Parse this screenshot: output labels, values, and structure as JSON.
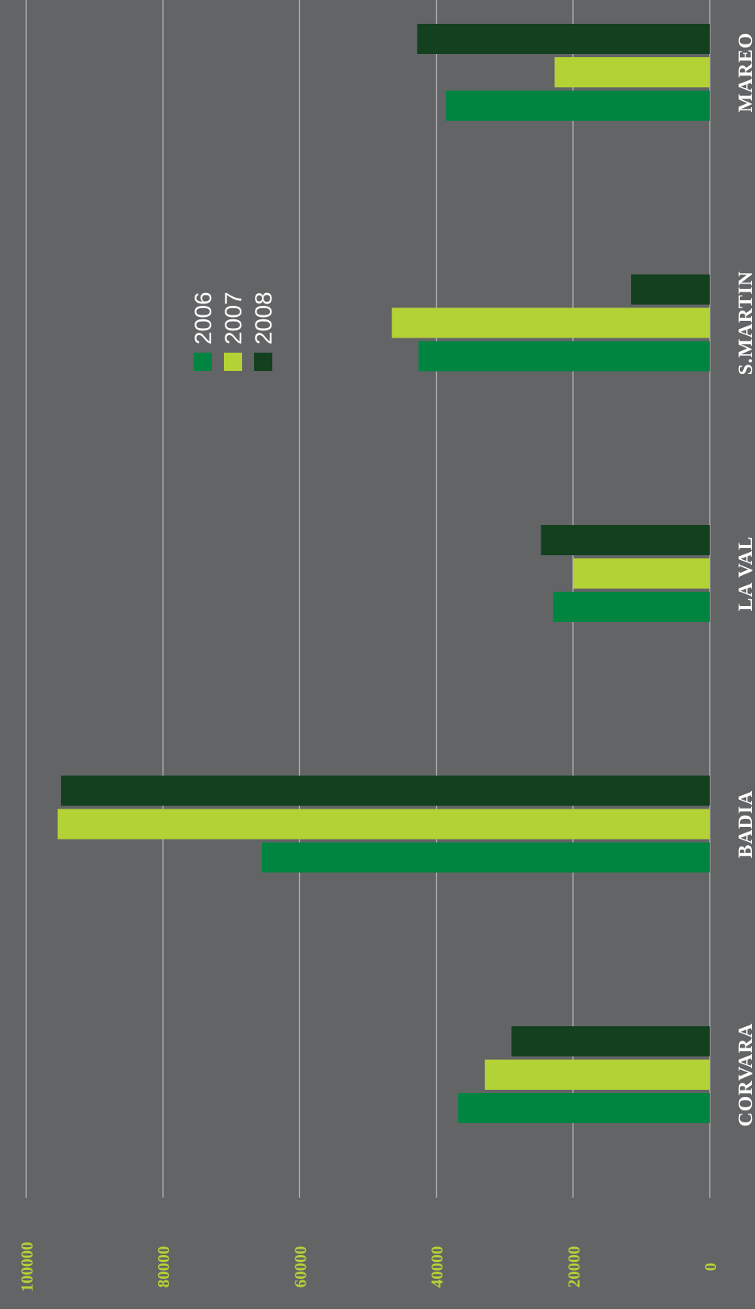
{
  "chart_data": {
    "type": "bar",
    "orientation": "rotated",
    "title": "",
    "xlabel": "",
    "ylabel": "",
    "categories": [
      "CORVARA",
      "BADIA",
      "LA VAL",
      "S.MARTIN",
      "MAREO"
    ],
    "series": [
      {
        "name": "2006",
        "color": "#008540",
        "values": [
          36800,
          65500,
          22900,
          42600,
          38600
        ]
      },
      {
        "name": "2007",
        "color": "#b3d235",
        "values": [
          32900,
          95400,
          20000,
          46500,
          22700
        ]
      },
      {
        "name": "2008",
        "color": "#13401f",
        "values": [
          29000,
          94900,
          24700,
          11500,
          42800
        ]
      }
    ],
    "ylim": [
      0,
      100000
    ],
    "yticks": [
      "0",
      "20000",
      "40000",
      "60000",
      "80000",
      "100000"
    ],
    "grid": true,
    "legend_position": "center",
    "colors": {
      "background": "#636466",
      "gridline": "#b5b6b8",
      "tick_label": "#b3d235",
      "category_label": "#ffffff",
      "legend_text": "#ffffff"
    }
  }
}
